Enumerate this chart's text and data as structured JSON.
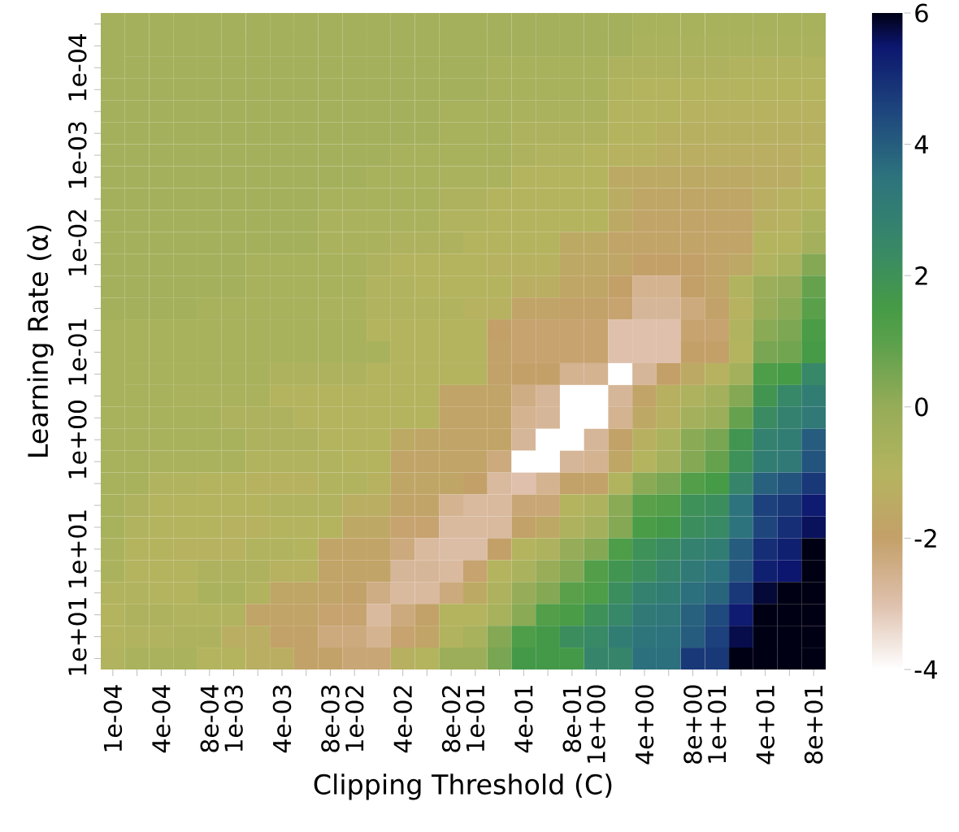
{
  "chart_data": {
    "type": "heatmap",
    "xlabel": "Clipping Threshold (C)",
    "ylabel": "Learning Rate (α)",
    "categories": [
      "1e-04",
      null,
      "4e-04",
      null,
      "8e-04",
      "1e-03",
      null,
      "4e-03",
      null,
      "8e-03",
      "1e-02",
      null,
      "4e-02",
      null,
      "8e-02",
      "1e-01",
      null,
      "4e-01",
      null,
      "8e-01",
      "1e+00",
      null,
      "4e+00",
      null,
      "8e+00",
      "1e+01",
      null,
      "4e+01",
      null,
      "8e+01"
    ],
    "y_categories": [
      null,
      null,
      "1e-04",
      null,
      null,
      null,
      "1e-03",
      null,
      null,
      null,
      "1e-02",
      null,
      null,
      null,
      null,
      "1e-01",
      null,
      null,
      null,
      "1e+00",
      null,
      null,
      null,
      null,
      "1e+01",
      null,
      null,
      null,
      "1e+01",
      null
    ],
    "clim": [
      -4,
      6
    ],
    "cticks": [
      -4,
      -2,
      0,
      2,
      4,
      6
    ],
    "cells": [
      [
        -0.5,
        -0.5,
        -0.5,
        -0.5,
        -0.5,
        -0.5,
        -0.5,
        -0.5,
        -0.5,
        -0.5,
        -0.5,
        -0.5,
        -0.5,
        -0.5,
        -0.5,
        -0.5,
        -0.5,
        -0.5,
        -0.5,
        -0.5,
        -0.5,
        -0.5,
        -0.6,
        -0.6,
        -0.6,
        -0.6,
        -0.6,
        -0.6,
        -0.6,
        -0.6
      ],
      [
        -0.5,
        -0.5,
        -0.5,
        -0.5,
        -0.5,
        -0.5,
        -0.5,
        -0.5,
        -0.5,
        -0.5,
        -0.5,
        -0.5,
        -0.5,
        -0.5,
        -0.5,
        -0.5,
        -0.5,
        -0.5,
        -0.5,
        -0.5,
        -0.5,
        -0.5,
        -0.7,
        -0.7,
        -0.7,
        -0.7,
        -0.7,
        -0.7,
        -0.7,
        -0.7
      ],
      [
        -0.5,
        -0.5,
        -0.5,
        -0.5,
        -0.5,
        -0.5,
        -0.5,
        -0.5,
        -0.5,
        -0.5,
        -0.5,
        -0.5,
        -0.5,
        -0.5,
        -0.5,
        -0.5,
        -0.6,
        -0.6,
        -0.6,
        -0.6,
        -0.6,
        -0.8,
        -0.8,
        -0.8,
        -0.8,
        -0.8,
        -0.9,
        -0.9,
        -0.9,
        -0.9
      ],
      [
        -0.5,
        -0.5,
        -0.5,
        -0.5,
        -0.5,
        -0.5,
        -0.5,
        -0.5,
        -0.5,
        -0.5,
        -0.5,
        -0.5,
        -0.5,
        -0.5,
        -0.5,
        -0.5,
        -0.6,
        -0.6,
        -0.6,
        -0.6,
        -0.6,
        -0.9,
        -1.0,
        -1.0,
        -1.0,
        -1.0,
        -1.0,
        -1.0,
        -1.0,
        -1.0
      ],
      [
        -0.5,
        -0.5,
        -0.5,
        -0.5,
        -0.5,
        -0.5,
        -0.5,
        -0.5,
        -0.5,
        -0.5,
        -0.5,
        -0.5,
        -0.5,
        -0.5,
        -0.6,
        -0.6,
        -0.6,
        -0.7,
        -0.7,
        -0.7,
        -0.7,
        -1.0,
        -1.0,
        -1.0,
        -1.1,
        -1.1,
        -1.1,
        -1.1,
        -1.1,
        -1.1
      ],
      [
        -0.5,
        -0.5,
        -0.5,
        -0.5,
        -0.5,
        -0.5,
        -0.5,
        -0.5,
        -0.5,
        -0.5,
        -0.5,
        -0.5,
        -0.5,
        -0.5,
        -0.6,
        -0.6,
        -0.6,
        -0.8,
        -0.8,
        -0.8,
        -0.8,
        -1.0,
        -1.0,
        -1.2,
        -1.2,
        -1.2,
        -1.2,
        -1.2,
        -1.2,
        -1.2
      ],
      [
        -0.5,
        -0.5,
        -0.5,
        -0.5,
        -0.5,
        -0.5,
        -0.5,
        -0.5,
        -0.5,
        -0.5,
        -0.5,
        -0.5,
        -0.6,
        -0.6,
        -0.6,
        -0.6,
        -0.6,
        -0.8,
        -0.9,
        -0.9,
        -1.0,
        -1.1,
        -1.1,
        -1.3,
        -1.3,
        -1.3,
        -1.3,
        -1.3,
        -1.3,
        -1.1
      ],
      [
        -0.5,
        -0.5,
        -0.5,
        -0.5,
        -0.5,
        -0.5,
        -0.5,
        -0.5,
        -0.5,
        -0.5,
        -0.5,
        -0.6,
        -0.6,
        -0.6,
        -0.7,
        -0.7,
        -0.7,
        -1.0,
        -1.0,
        -1.0,
        -1.0,
        -1.5,
        -1.5,
        -1.5,
        -1.5,
        -1.5,
        -1.5,
        -1.4,
        -1.4,
        -1.0
      ],
      [
        -0.5,
        -0.5,
        -0.5,
        -0.5,
        -0.5,
        -0.5,
        -0.5,
        -0.5,
        -0.5,
        -0.6,
        -0.6,
        -0.6,
        -0.6,
        -0.6,
        -0.8,
        -0.8,
        -1.0,
        -1.0,
        -1.0,
        -1.0,
        -1.0,
        -1.4,
        -1.7,
        -1.7,
        -1.7,
        -1.7,
        -1.7,
        -1.3,
        -1.1,
        -1.0
      ],
      [
        -0.5,
        -0.5,
        -0.5,
        -0.5,
        -0.5,
        -0.5,
        -0.5,
        -0.5,
        -0.5,
        -0.7,
        -0.7,
        -0.7,
        -0.7,
        -0.7,
        -0.9,
        -0.9,
        -1.0,
        -1.0,
        -1.0,
        -1.0,
        -1.0,
        -1.5,
        -1.8,
        -1.8,
        -1.8,
        -1.8,
        -1.8,
        -1.2,
        -1.1,
        -0.7
      ],
      [
        -0.5,
        -0.5,
        -0.5,
        -0.5,
        -0.5,
        -0.5,
        -0.5,
        -0.5,
        -0.5,
        -0.7,
        -0.7,
        -0.7,
        -0.8,
        -0.8,
        -0.8,
        -1.0,
        -1.0,
        -1.0,
        -1.0,
        -1.5,
        -1.5,
        -1.8,
        -1.8,
        -1.8,
        -1.8,
        -1.8,
        -1.8,
        -1.0,
        -1.0,
        -0.5
      ],
      [
        -0.5,
        -0.5,
        -0.5,
        -0.5,
        -0.5,
        -0.5,
        -0.6,
        -0.6,
        -0.6,
        -0.6,
        -0.6,
        -0.8,
        -1.0,
        -1.0,
        -1.0,
        -1.0,
        -1.1,
        -1.1,
        -1.1,
        -1.6,
        -1.6,
        -1.7,
        -2.0,
        -2.0,
        -2.0,
        -1.8,
        -1.6,
        -0.9,
        -0.7,
        0.3
      ],
      [
        -0.5,
        -0.5,
        -0.5,
        -0.5,
        -0.5,
        -0.5,
        -0.6,
        -0.6,
        -0.6,
        -0.6,
        -0.6,
        -0.9,
        -0.9,
        -1.0,
        -1.0,
        -1.0,
        -1.0,
        -1.3,
        -1.3,
        -1.7,
        -1.7,
        -2.0,
        -2.6,
        -2.6,
        -2.0,
        -1.8,
        -0.9,
        -0.2,
        0.0,
        0.8
      ],
      [
        -0.5,
        -0.5,
        -0.5,
        -0.5,
        -0.6,
        -0.6,
        -0.6,
        -0.6,
        -0.6,
        -0.7,
        -0.7,
        -0.9,
        -0.9,
        -0.9,
        -0.9,
        -1.1,
        -1.1,
        -1.8,
        -1.8,
        -1.9,
        -1.9,
        -2.1,
        -2.7,
        -2.7,
        -2.3,
        -1.9,
        -1.1,
        -0.1,
        0.2,
        1.0
      ],
      [
        -0.6,
        -0.6,
        -0.6,
        -0.6,
        -0.6,
        -0.6,
        -0.6,
        -0.6,
        -0.6,
        -0.6,
        -0.6,
        -1.0,
        -1.0,
        -1.0,
        -1.0,
        -1.0,
        -2.0,
        -2.1,
        -2.1,
        -2.1,
        -2.1,
        -3.0,
        -3.0,
        -3.0,
        -2.1,
        -2.1,
        -0.9,
        0.2,
        0.4,
        1.4
      ],
      [
        -0.6,
        -0.6,
        -0.6,
        -0.6,
        -0.6,
        -0.6,
        -0.6,
        -0.6,
        -0.6,
        -0.6,
        -0.6,
        -0.6,
        -1.0,
        -1.0,
        -1.0,
        -1.0,
        -1.9,
        -2.1,
        -2.1,
        -2.1,
        -2.1,
        -3.0,
        -3.0,
        -3.0,
        -2.0,
        -2.0,
        -1.0,
        0.5,
        0.6,
        1.5
      ],
      [
        -0.6,
        -0.6,
        -0.6,
        -0.6,
        -0.6,
        -0.6,
        -0.6,
        -0.8,
        -0.8,
        -0.8,
        -0.8,
        -1.0,
        -1.0,
        -1.0,
        -1.0,
        -1.0,
        -1.9,
        -2.0,
        -2.0,
        -2.6,
        -2.6,
        -4,
        -2.7,
        -2.0,
        -1.5,
        -1.1,
        -0.5,
        1.3,
        1.5,
        2.5
      ],
      [
        -0.6,
        -0.6,
        -0.6,
        -0.7,
        -0.7,
        -0.7,
        -0.7,
        -1.0,
        -1.0,
        -1.0,
        -1.0,
        -1.0,
        -1.0,
        -1.0,
        -1.8,
        -1.8,
        -1.8,
        -2.4,
        -2.7,
        -4,
        -4,
        -2.7,
        -1.8,
        -1.2,
        -0.8,
        -0.5,
        0.3,
        1.8,
        2.5,
        3.0
      ],
      [
        -0.6,
        -0.6,
        -0.6,
        -0.6,
        -0.6,
        -0.8,
        -0.8,
        -0.8,
        -1.0,
        -1.0,
        -1.0,
        -1.0,
        -1.0,
        -1.0,
        -1.8,
        -1.8,
        -1.8,
        -2.6,
        -2.7,
        -4,
        -4,
        -2.6,
        -1.6,
        -1.2,
        -0.5,
        -0.2,
        0.8,
        2.3,
        2.8,
        3.2
      ],
      [
        -0.6,
        -0.6,
        -0.6,
        -0.6,
        -0.6,
        -0.6,
        -0.8,
        -0.8,
        -0.8,
        -1.0,
        -1.0,
        -1.0,
        -1.5,
        -1.7,
        -1.8,
        -1.8,
        -1.8,
        -2.7,
        -4,
        -4,
        -2.7,
        -1.9,
        -1.2,
        -0.7,
        0.2,
        0.5,
        1.8,
        2.8,
        3.0,
        4.0
      ],
      [
        -0.6,
        -0.6,
        -0.7,
        -0.7,
        -0.7,
        -0.7,
        -0.9,
        -0.9,
        -0.9,
        -0.9,
        -1.0,
        -1.0,
        -1.8,
        -1.8,
        -1.8,
        -1.8,
        -2.3,
        -4,
        -4,
        -2.7,
        -2.6,
        -1.7,
        -1.0,
        -0.5,
        0.3,
        0.8,
        2.0,
        3.0,
        3.2,
        4.2
      ],
      [
        -0.6,
        -0.6,
        -0.9,
        -0.9,
        -1.0,
        -1.0,
        -1.1,
        -1.1,
        -1.1,
        -0.9,
        -0.9,
        -1.1,
        -1.7,
        -1.7,
        -1.7,
        -2.0,
        -2.8,
        -3.0,
        -2.6,
        -1.9,
        -1.9,
        -0.9,
        0.2,
        0.5,
        1.2,
        1.5,
        2.6,
        3.9,
        4.2,
        4.8
      ],
      [
        -0.6,
        -0.8,
        -1.0,
        -1.0,
        -1.0,
        -1.0,
        -1.0,
        -0.9,
        -0.9,
        -0.9,
        -1.3,
        -1.3,
        -1.8,
        -1.8,
        -2.6,
        -2.8,
        -2.8,
        -2.2,
        -2.2,
        -1.0,
        -0.8,
        0.2,
        1.0,
        1.2,
        2.0,
        2.2,
        3.5,
        4.6,
        4.8,
        5.4
      ],
      [
        -0.6,
        -0.9,
        -1.0,
        -1.0,
        -1.0,
        -1.1,
        -1.1,
        -1.0,
        -1.0,
        -1.0,
        -1.6,
        -1.6,
        -2.1,
        -2.1,
        -2.8,
        -2.8,
        -2.8,
        -1.9,
        -1.6,
        -0.8,
        -0.5,
        0.3,
        1.4,
        1.6,
        2.2,
        2.4,
        3.5,
        4.5,
        5.0,
        5.6
      ],
      [
        -0.7,
        -1.0,
        -1.0,
        -1.1,
        -1.1,
        -1.1,
        -0.9,
        -0.9,
        -1.0,
        -1.8,
        -1.8,
        -1.8,
        -2.3,
        -2.8,
        -2.9,
        -2.9,
        -2.0,
        -1.0,
        -0.8,
        0.0,
        0.3,
        1.3,
        2.0,
        2.3,
        2.8,
        3.0,
        4.0,
        5.0,
        5.3,
        6
      ],
      [
        -0.7,
        -1.0,
        -1.0,
        -1.0,
        -0.8,
        -0.8,
        -0.8,
        -1.1,
        -1.1,
        -1.8,
        -1.8,
        -1.8,
        -2.7,
        -2.7,
        -2.8,
        -2.1,
        -1.0,
        -0.7,
        -0.1,
        0.3,
        1.2,
        1.8,
        2.2,
        2.6,
        3.2,
        3.5,
        4.2,
        5.3,
        5.5,
        6
      ],
      [
        -0.9,
        -0.9,
        -1.0,
        -1.0,
        -0.7,
        -0.7,
        -0.9,
        -1.7,
        -1.7,
        -1.8,
        -1.9,
        -2.4,
        -2.8,
        -2.8,
        -2.3,
        -1.5,
        -0.8,
        0.0,
        0.3,
        1.0,
        1.3,
        2.2,
        2.8,
        3.0,
        3.6,
        3.8,
        4.8,
        5.8,
        6,
        6
      ],
      [
        -1.0,
        -0.8,
        -0.8,
        -0.9,
        -0.9,
        -0.9,
        -1.8,
        -1.8,
        -1.8,
        -2.1,
        -2.1,
        -2.8,
        -2.3,
        -1.9,
        -1.0,
        -1.0,
        -0.6,
        0.2,
        1.2,
        1.4,
        2.0,
        2.5,
        3.2,
        3.3,
        3.9,
        4.4,
        5.4,
        6,
        6,
        6
      ],
      [
        -1.0,
        -0.9,
        -0.9,
        -0.8,
        -0.8,
        -1.3,
        -1.3,
        -1.9,
        -1.9,
        -2.3,
        -2.3,
        -2.6,
        -2.1,
        -1.8,
        -0.9,
        -0.6,
        0.3,
        1.3,
        1.6,
        2.2,
        2.4,
        3.0,
        3.4,
        3.5,
        4.0,
        4.6,
        5.7,
        6,
        6,
        6
      ],
      [
        -0.9,
        -0.7,
        -0.7,
        -0.7,
        -1.0,
        -1.0,
        -1.3,
        -1.3,
        -1.9,
        -1.9,
        -2.2,
        -2.2,
        -1.2,
        -1.0,
        -0.2,
        -0.2,
        0.5,
        1.6,
        1.6,
        1.6,
        2.6,
        2.6,
        3.6,
        3.6,
        4.8,
        4.8,
        6,
        6,
        6,
        6
      ]
    ]
  }
}
